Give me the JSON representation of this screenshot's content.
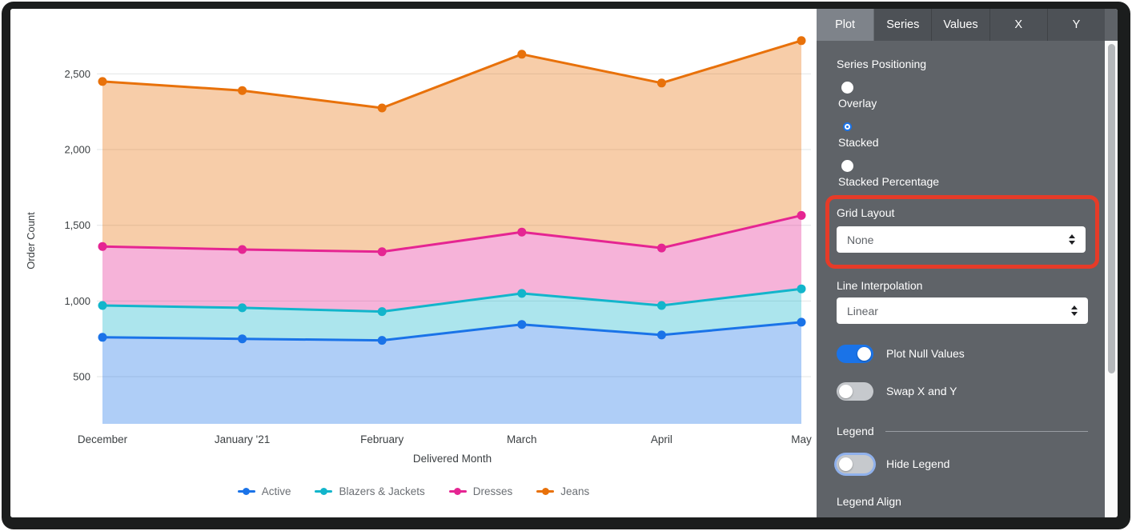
{
  "chart_data": {
    "type": "area",
    "stacking": "stacked",
    "categories": [
      "December",
      "January '21",
      "February",
      "March",
      "April",
      "May"
    ],
    "xlabel": "Delivered Month",
    "ylabel": "Order Count",
    "y_ticks": [
      {
        "v": 500,
        "label": "500"
      },
      {
        "v": 1000,
        "label": "1,000"
      },
      {
        "v": 1500,
        "label": "1,500"
      },
      {
        "v": 2000,
        "label": "2,000"
      },
      {
        "v": 2500,
        "label": "2,500"
      }
    ],
    "series": [
      {
        "name": "Active",
        "color": "#1A73E8",
        "values": [
          760,
          750,
          740,
          845,
          775,
          860
        ]
      },
      {
        "name": "Blazers & Jackets",
        "color": "#12B5CB",
        "values": [
          210,
          205,
          190,
          205,
          195,
          220
        ]
      },
      {
        "name": "Dresses",
        "color": "#E52592",
        "values": [
          390,
          385,
          395,
          405,
          380,
          485
        ]
      },
      {
        "name": "Jeans",
        "color": "#E8710A",
        "values": [
          1090,
          1050,
          950,
          1175,
          1090,
          1155
        ]
      }
    ],
    "stacked_totals": {
      "Active": [
        760,
        750,
        740,
        845,
        775,
        860
      ],
      "Blazers & Jackets": [
        970,
        955,
        930,
        1050,
        970,
        1080
      ],
      "Dresses": [
        1360,
        1340,
        1325,
        1455,
        1350,
        1565
      ],
      "Jeans": [
        2450,
        2390,
        2275,
        2630,
        2440,
        2720
      ]
    },
    "legend_position": "bottom",
    "grid": "horizontal-only"
  },
  "panel": {
    "tabs": [
      {
        "label": "Plot",
        "selected": true
      },
      {
        "label": "Series",
        "selected": false
      },
      {
        "label": "Values",
        "selected": false
      },
      {
        "label": "X",
        "selected": false
      },
      {
        "label": "Y",
        "selected": false
      }
    ],
    "series_positioning": {
      "label": "Series Positioning",
      "options": [
        {
          "label": "Overlay",
          "selected": false
        },
        {
          "label": "Stacked",
          "selected": true
        },
        {
          "label": "Stacked Percentage",
          "selected": false
        }
      ]
    },
    "grid_layout": {
      "label": "Grid Layout",
      "value": "None",
      "highlighted": true
    },
    "line_interpolation": {
      "label": "Line Interpolation",
      "value": "Linear"
    },
    "plot_null_values": {
      "label": "Plot Null Values",
      "on": true
    },
    "swap_x_y": {
      "label": "Swap X and Y",
      "on": false
    },
    "legend_section": {
      "header": "Legend",
      "hide_legend": {
        "label": "Hide Legend",
        "on": false,
        "focused": true
      },
      "legend_align_label": "Legend Align"
    },
    "highlight_color": "#e63b28",
    "accent_color": "#1A73E8"
  }
}
